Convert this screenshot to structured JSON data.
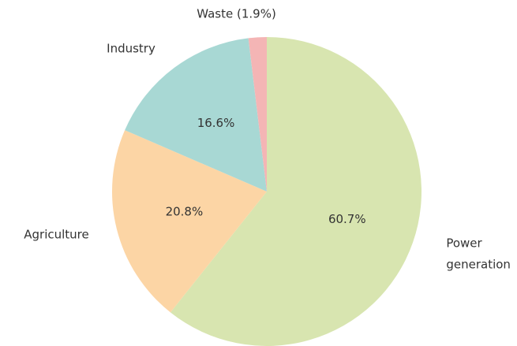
{
  "chart_data": {
    "type": "pie",
    "categories": [
      "Power generation",
      "Agriculture",
      "Industry",
      "Waste"
    ],
    "values": [
      60.7,
      20.8,
      16.6,
      1.9
    ],
    "value_labels": [
      "60.7%",
      "20.8%",
      "16.6%",
      "(1.9%)"
    ],
    "colors": [
      "#d8e5b0",
      "#fcd5a5",
      "#a8d8d4",
      "#f4b5b5"
    ]
  }
}
